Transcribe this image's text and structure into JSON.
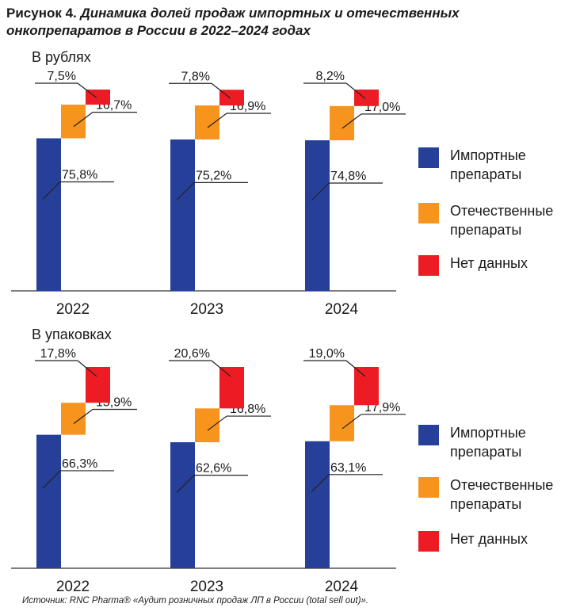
{
  "figure": {
    "title_lead": "Рисунок 4.",
    "title_rest": "Динамика долей продаж импортных и отечественных онкопрепаратов в России в 2022–2024 годах",
    "source": "Источник: RNC Pharma® «Аудит розничных продаж ЛП в России (total sell out)»."
  },
  "colors": {
    "imported": "#26409a",
    "domestic": "#f7941d",
    "nodata": "#ed1c24"
  },
  "legend": [
    {
      "key": "imported",
      "label": "Импортные препараты",
      "color": "#26409a"
    },
    {
      "key": "domestic",
      "label": "Отечественные препараты",
      "color": "#f7941d"
    },
    {
      "key": "nodata",
      "label": "Нет данных",
      "color": "#ed1c24"
    }
  ],
  "chart_data": [
    {
      "type": "bar",
      "stacking": "waterfall",
      "subtitle": "В рублях",
      "categories": [
        "2022",
        "2023",
        "2024"
      ],
      "series": [
        {
          "name": "Импортные препараты",
          "values": [
            75.8,
            75.2,
            74.8
          ],
          "labels": [
            "75,8%",
            "75,2%",
            "74,8%"
          ]
        },
        {
          "name": "Отечественные препараты",
          "values": [
            16.7,
            16.9,
            17.0
          ],
          "labels": [
            "16,7%",
            "16,9%",
            "17,0%"
          ]
        },
        {
          "name": "Нет данных",
          "values": [
            7.5,
            7.8,
            8.2
          ],
          "labels": [
            "7,5%",
            "7,8%",
            "8,2%"
          ]
        }
      ],
      "ylim": [
        0,
        100
      ],
      "legend_position": "right",
      "grid": false
    },
    {
      "type": "bar",
      "stacking": "waterfall",
      "subtitle": "В упаковках",
      "categories": [
        "2022",
        "2023",
        "2024"
      ],
      "series": [
        {
          "name": "Импортные препараты",
          "values": [
            66.3,
            62.6,
            63.1
          ],
          "labels": [
            "66,3%",
            "62,6%",
            "63,1%"
          ]
        },
        {
          "name": "Отечественные препараты",
          "values": [
            15.9,
            16.8,
            17.9
          ],
          "labels": [
            "15,9%",
            "16,8%",
            "17,9%"
          ]
        },
        {
          "name": "Нет данных",
          "values": [
            17.8,
            20.6,
            19.0
          ],
          "labels": [
            "17,8%",
            "20,6%",
            "19,0%"
          ]
        }
      ],
      "ylim": [
        0,
        100
      ],
      "legend_position": "right",
      "grid": false
    }
  ]
}
